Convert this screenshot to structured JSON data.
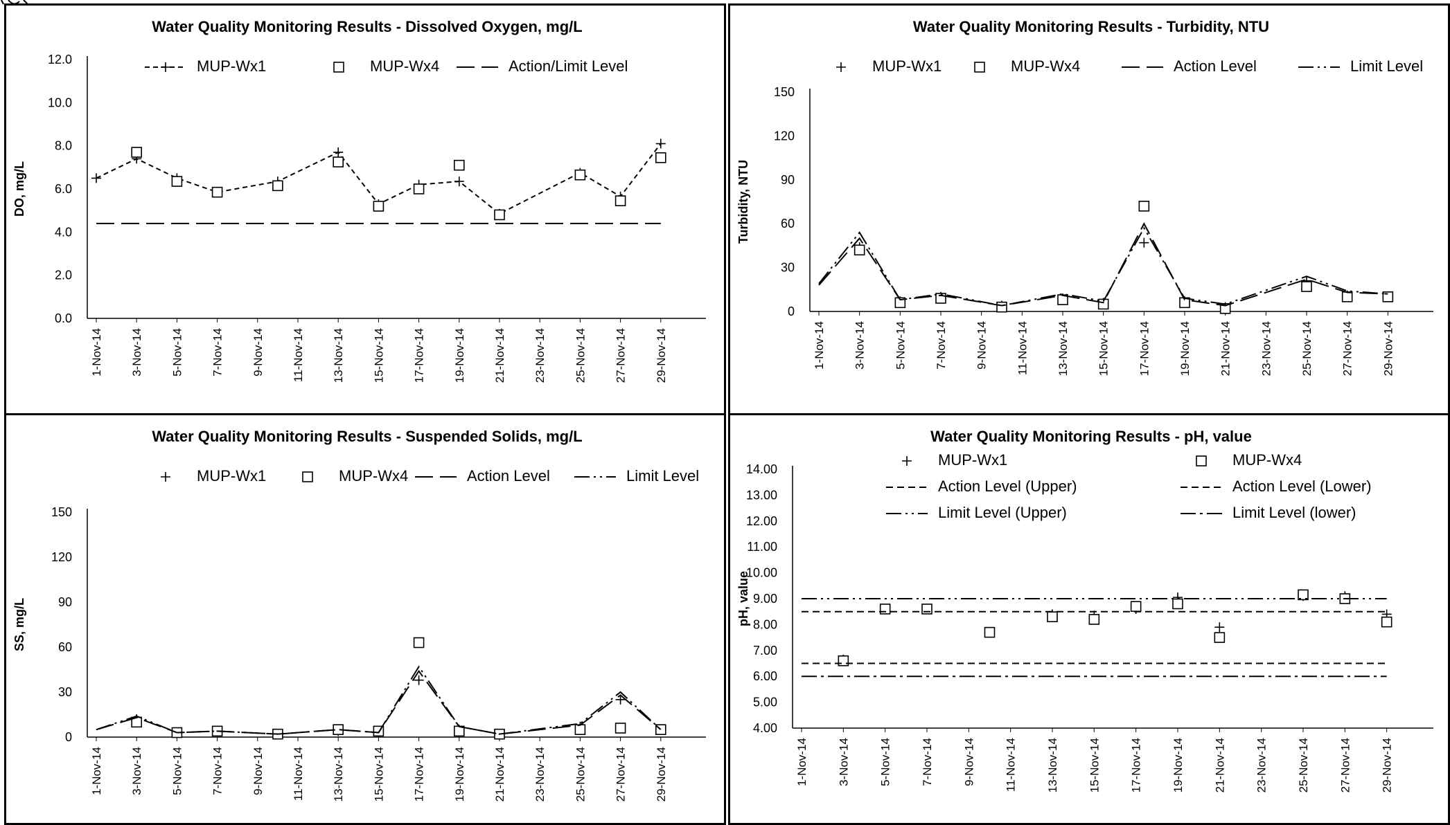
{
  "dates": [
    "1-Nov-14",
    "3-Nov-14",
    "5-Nov-14",
    "7-Nov-14",
    "9-Nov-14",
    "11-Nov-14",
    "13-Nov-14",
    "15-Nov-14",
    "17-Nov-14",
    "19-Nov-14",
    "21-Nov-14",
    "23-Nov-14",
    "25-Nov-14",
    "27-Nov-14",
    "29-Nov-14"
  ],
  "chart_data": [
    {
      "id": "do",
      "type": "line",
      "title": "Water Quality Monitoring Results - Dissolved Oxygen, mg/L",
      "ylabel": "DO, mg/L",
      "xlabel": "",
      "x_range": [
        "1-Nov-14",
        "29-Nov-14"
      ],
      "ylim": [
        0,
        12
      ],
      "yticks": [
        "0.0",
        "2.0",
        "4.0",
        "6.0",
        "8.0",
        "10.0",
        "12.0"
      ],
      "grid": false,
      "legend": [
        {
          "name": "MUP-Wx1",
          "style": "dashed-plus"
        },
        {
          "name": "MUP-Wx4",
          "style": "square"
        },
        {
          "name": "Action/Limit Level",
          "style": "long-dash"
        }
      ],
      "series": [
        {
          "name": "MUP-Wx1",
          "style": "dashed-plus",
          "x": [
            "1-Nov-14",
            "3-Nov-14",
            "5-Nov-14",
            "7-Nov-14",
            "10-Nov-14",
            "13-Nov-14",
            "15-Nov-14",
            "17-Nov-14",
            "19-Nov-14",
            "21-Nov-14",
            "25-Nov-14",
            "27-Nov-14",
            "29-Nov-14"
          ],
          "y": [
            6.5,
            7.4,
            6.5,
            5.85,
            6.35,
            7.7,
            5.3,
            6.2,
            6.35,
            4.85,
            6.75,
            5.65,
            8.1
          ]
        },
        {
          "name": "MUP-Wx4",
          "style": "square",
          "x": [
            "3-Nov-14",
            "5-Nov-14",
            "7-Nov-14",
            "10-Nov-14",
            "13-Nov-14",
            "15-Nov-14",
            "17-Nov-14",
            "19-Nov-14",
            "21-Nov-14",
            "25-Nov-14",
            "27-Nov-14",
            "29-Nov-14"
          ],
          "y": [
            7.7,
            6.35,
            5.85,
            6.15,
            7.25,
            5.2,
            6.0,
            7.1,
            4.8,
            6.65,
            5.45,
            7.45
          ]
        },
        {
          "name": "Action/Limit Level",
          "style": "long-dash",
          "x": [
            "1-Nov-14",
            "29-Nov-14"
          ],
          "y": [
            4.4,
            4.4
          ]
        }
      ]
    },
    {
      "id": "turbidity",
      "type": "line",
      "title": "Water Quality Monitoring Results - Turbidity, NTU",
      "ylabel": "Turbidity, NTU",
      "xlabel": "",
      "x_range": [
        "1-Nov-14",
        "29-Nov-14"
      ],
      "ylim": [
        0,
        150
      ],
      "yticks": [
        "0",
        "30",
        "60",
        "90",
        "120",
        "150"
      ],
      "grid": false,
      "legend": [
        {
          "name": "MUP-Wx1",
          "style": "plus"
        },
        {
          "name": "MUP-Wx4",
          "style": "square"
        },
        {
          "name": "Action Level",
          "style": "long-dash"
        },
        {
          "name": "Limit Level",
          "style": "dash-dot-dot"
        }
      ],
      "series": [
        {
          "name": "MUP-Wx1",
          "style": "plus",
          "x": [
            "3-Nov-14",
            "5-Nov-14",
            "7-Nov-14",
            "10-Nov-14",
            "13-Nov-14",
            "15-Nov-14",
            "17-Nov-14",
            "19-Nov-14",
            "21-Nov-14",
            "25-Nov-14",
            "27-Nov-14",
            "29-Nov-14"
          ],
          "y": [
            44,
            7,
            10,
            4,
            9,
            6,
            47,
            7,
            3,
            21,
            11,
            10
          ]
        },
        {
          "name": "MUP-Wx4",
          "style": "square",
          "x": [
            "3-Nov-14",
            "5-Nov-14",
            "7-Nov-14",
            "10-Nov-14",
            "13-Nov-14",
            "15-Nov-14",
            "17-Nov-14",
            "19-Nov-14",
            "21-Nov-14",
            "25-Nov-14",
            "27-Nov-14",
            "29-Nov-14"
          ],
          "y": [
            42,
            6,
            9,
            3,
            8,
            5,
            72,
            6,
            2,
            17,
            10,
            10
          ]
        },
        {
          "name": "Action Level",
          "style": "long-dash",
          "x": [
            "1-Nov-14",
            "3-Nov-14",
            "5-Nov-14",
            "7-Nov-14",
            "10-Nov-14",
            "13-Nov-14",
            "15-Nov-14",
            "17-Nov-14",
            "19-Nov-14",
            "21-Nov-14",
            "25-Nov-14",
            "27-Nov-14",
            "29-Nov-14"
          ],
          "y": [
            18,
            50,
            8,
            11,
            4,
            11,
            6,
            60,
            8,
            4,
            22,
            13,
            12
          ]
        },
        {
          "name": "Limit Level",
          "style": "dash-dot-dot",
          "x": [
            "1-Nov-14",
            "3-Nov-14",
            "5-Nov-14",
            "7-Nov-14",
            "10-Nov-14",
            "13-Nov-14",
            "15-Nov-14",
            "17-Nov-14",
            "19-Nov-14",
            "21-Nov-14",
            "25-Nov-14",
            "27-Nov-14",
            "29-Nov-14"
          ],
          "y": [
            19,
            54,
            8,
            12,
            4,
            12,
            7,
            57,
            9,
            5,
            24,
            14,
            12
          ]
        }
      ]
    },
    {
      "id": "ss",
      "type": "line",
      "title": "Water Quality Monitoring Results - Suspended Solids, mg/L",
      "ylabel": "SS, mg/L",
      "xlabel": "",
      "x_range": [
        "1-Nov-14",
        "29-Nov-14"
      ],
      "ylim": [
        0,
        150
      ],
      "yticks": [
        "0",
        "30",
        "60",
        "90",
        "120",
        "150"
      ],
      "grid": false,
      "legend": [
        {
          "name": "MUP-Wx1",
          "style": "plus"
        },
        {
          "name": "MUP-Wx4",
          "style": "square"
        },
        {
          "name": "Action Level",
          "style": "long-dash"
        },
        {
          "name": "Limit Level",
          "style": "dash-dot-dot"
        }
      ],
      "series": [
        {
          "name": "MUP-Wx1",
          "style": "plus",
          "x": [
            "3-Nov-14",
            "5-Nov-14",
            "7-Nov-14",
            "10-Nov-14",
            "13-Nov-14",
            "15-Nov-14",
            "17-Nov-14",
            "19-Nov-14",
            "21-Nov-14",
            "25-Nov-14",
            "27-Nov-14",
            "29-Nov-14"
          ],
          "y": [
            12,
            3,
            4,
            2,
            4,
            3,
            38,
            5,
            2,
            7,
            25,
            5
          ]
        },
        {
          "name": "MUP-Wx4",
          "style": "square",
          "x": [
            "3-Nov-14",
            "5-Nov-14",
            "7-Nov-14",
            "10-Nov-14",
            "13-Nov-14",
            "15-Nov-14",
            "17-Nov-14",
            "19-Nov-14",
            "21-Nov-14",
            "25-Nov-14",
            "27-Nov-14",
            "29-Nov-14"
          ],
          "y": [
            10,
            3,
            4,
            2,
            5,
            4,
            63,
            4,
            2,
            5,
            6,
            5
          ]
        },
        {
          "name": "Action Level",
          "style": "long-dash",
          "x": [
            "1-Nov-14",
            "3-Nov-14",
            "5-Nov-14",
            "7-Nov-14",
            "10-Nov-14",
            "13-Nov-14",
            "15-Nov-14",
            "17-Nov-14",
            "19-Nov-14",
            "21-Nov-14",
            "25-Nov-14",
            "27-Nov-14",
            "29-Nov-14"
          ],
          "y": [
            5,
            13,
            3,
            4,
            2,
            5,
            3,
            44,
            7,
            2,
            8,
            28,
            5
          ]
        },
        {
          "name": "Limit Level",
          "style": "dash-dot-dot",
          "x": [
            "1-Nov-14",
            "3-Nov-14",
            "5-Nov-14",
            "7-Nov-14",
            "10-Nov-14",
            "13-Nov-14",
            "15-Nov-14",
            "17-Nov-14",
            "19-Nov-14",
            "21-Nov-14",
            "25-Nov-14",
            "27-Nov-14",
            "29-Nov-14"
          ],
          "y": [
            5,
            14,
            3,
            4,
            2,
            5,
            3,
            47,
            7,
            2,
            9,
            30,
            5
          ]
        }
      ]
    },
    {
      "id": "ph",
      "type": "scatter",
      "title": "Water Quality Monitoring Results - pH, value",
      "ylabel": "pH, value",
      "xlabel": "",
      "x_range": [
        "1-Nov-14",
        "29-Nov-14"
      ],
      "ylim": [
        4,
        14
      ],
      "yticks": [
        "4.00",
        "5.00",
        "6.00",
        "7.00",
        "8.00",
        "9.00",
        "10.00",
        "11.00",
        "12.00",
        "13.00",
        "14.00"
      ],
      "grid": false,
      "legend": [
        {
          "name": "MUP-Wx1",
          "style": "plus"
        },
        {
          "name": "MUP-Wx4",
          "style": "square"
        },
        {
          "name": "Action Level (Upper)",
          "style": "short-dash"
        },
        {
          "name": "Action Level (Lower)",
          "style": "short-dash"
        },
        {
          "name": "Limit Level (Upper)",
          "style": "dash-dot-dot"
        },
        {
          "name": "Limit Level (lower)",
          "style": "dash-dot"
        }
      ],
      "series": [
        {
          "name": "MUP-Wx1",
          "style": "plus",
          "x": [
            "3-Nov-14",
            "5-Nov-14",
            "7-Nov-14",
            "10-Nov-14",
            "13-Nov-14",
            "15-Nov-14",
            "17-Nov-14",
            "19-Nov-14",
            "21-Nov-14",
            "25-Nov-14",
            "27-Nov-14",
            "29-Nov-14"
          ],
          "y": [
            6.65,
            8.6,
            8.6,
            7.7,
            8.4,
            8.35,
            8.6,
            9.05,
            7.9,
            9.1,
            9.1,
            8.4
          ]
        },
        {
          "name": "MUP-Wx4",
          "style": "square",
          "x": [
            "3-Nov-14",
            "5-Nov-14",
            "7-Nov-14",
            "10-Nov-14",
            "13-Nov-14",
            "15-Nov-14",
            "17-Nov-14",
            "19-Nov-14",
            "21-Nov-14",
            "25-Nov-14",
            "27-Nov-14",
            "29-Nov-14"
          ],
          "y": [
            6.6,
            8.6,
            8.6,
            7.7,
            8.3,
            8.2,
            8.7,
            8.8,
            7.5,
            9.15,
            9.0,
            8.1
          ]
        },
        {
          "name": "Action Level (Upper)",
          "style": "short-dash",
          "x": [
            "1-Nov-14",
            "29-Nov-14"
          ],
          "y": [
            8.5,
            8.5
          ]
        },
        {
          "name": "Action Level (Lower)",
          "style": "short-dash",
          "x": [
            "1-Nov-14",
            "29-Nov-14"
          ],
          "y": [
            6.5,
            6.5
          ]
        },
        {
          "name": "Limit Level (Upper)",
          "style": "dash-dot-dot",
          "x": [
            "1-Nov-14",
            "29-Nov-14"
          ],
          "y": [
            9.0,
            9.0
          ]
        },
        {
          "name": "Limit Level (lower)",
          "style": "dash-dot",
          "x": [
            "1-Nov-14",
            "29-Nov-14"
          ],
          "y": [
            6.0,
            6.0
          ]
        }
      ]
    }
  ]
}
